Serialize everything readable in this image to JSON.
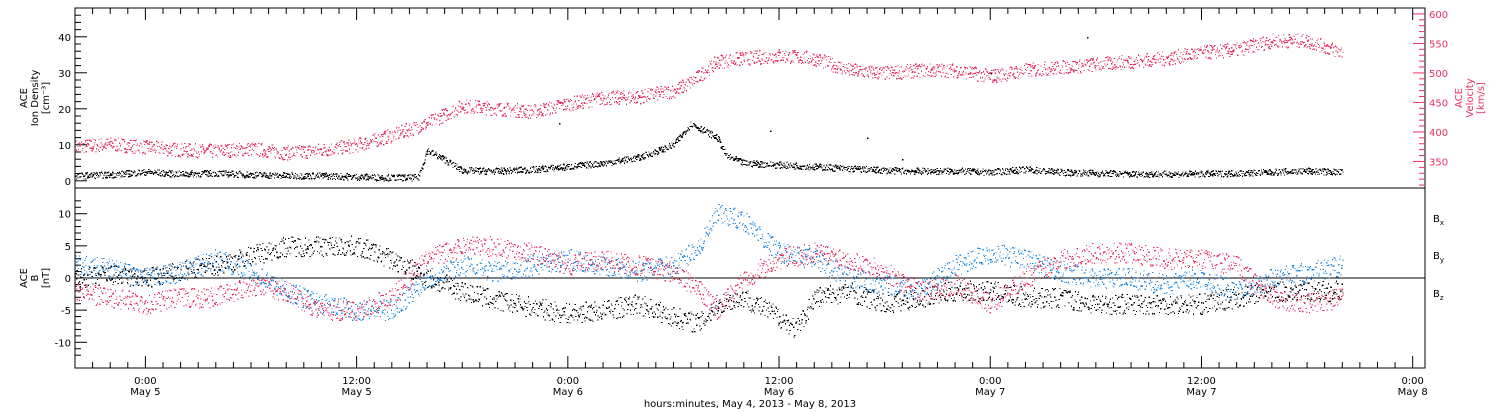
{
  "colors": {
    "black": "#000000",
    "pink": "#e8315f",
    "blue": "#1e88e5"
  },
  "chart_data": [
    {
      "type": "scatter",
      "panel": "top",
      "xlabel": "hours:minutes, May  4, 2013 - May  8, 2013",
      "x_ticks": [
        {
          "hour": 24,
          "time": "0:00",
          "day": "May 5"
        },
        {
          "hour": 36,
          "time": "12:00",
          "day": "May 5"
        },
        {
          "hour": 48,
          "time": "0:00",
          "day": "May 6"
        },
        {
          "hour": 60,
          "time": "12:00",
          "day": "May 6"
        },
        {
          "hour": 72,
          "time": "0:00",
          "day": "May 7"
        },
        {
          "hour": 84,
          "time": "12:00",
          "day": "May 7"
        },
        {
          "hour": 96,
          "time": "0:00",
          "day": "May 8"
        }
      ],
      "xlim": [
        20.0,
        96.7
      ],
      "left_axis": {
        "label_lines": [
          "ACE",
          "Ion Density",
          "[cm⁻³]"
        ],
        "ylim": [
          -2,
          48
        ],
        "ticks": [
          0,
          10,
          20,
          30,
          40
        ]
      },
      "right_axis": {
        "label_lines": [
          "ACE",
          "Velocity",
          "[km/s]"
        ],
        "ylim": [
          305,
          610
        ],
        "ticks": [
          350,
          400,
          450,
          500,
          550,
          600
        ]
      },
      "series": [
        {
          "axis": "left",
          "color": "#000000",
          "points": [
            [
              20,
              1.5
            ],
            [
              22,
              1.8
            ],
            [
              24,
              2.5
            ],
            [
              26,
              2.0
            ],
            [
              28,
              2.2
            ],
            [
              30,
              1.8
            ],
            [
              32,
              1.5
            ],
            [
              34,
              1.5
            ],
            [
              36,
              1.2
            ],
            [
              38,
              1.0
            ],
            [
              39.5,
              1.0
            ],
            [
              40,
              8.5
            ],
            [
              41,
              6.0
            ],
            [
              42,
              3.0
            ],
            [
              44,
              2.8
            ],
            [
              46,
              3.2
            ],
            [
              48,
              4.0
            ],
            [
              50,
              5.0
            ],
            [
              52,
              6.5
            ],
            [
              54,
              10.0
            ],
            [
              55,
              16.0
            ],
            [
              56.5,
              12.0
            ],
            [
              57,
              7.0
            ],
            [
              58,
              5.0
            ],
            [
              60,
              4.5
            ],
            [
              62,
              4.0
            ],
            [
              64,
              3.5
            ],
            [
              66,
              3.0
            ],
            [
              68,
              2.8
            ],
            [
              70,
              2.8
            ],
            [
              72,
              2.5
            ],
            [
              74,
              3.2
            ],
            [
              76,
              2.5
            ],
            [
              78,
              2.2
            ],
            [
              80,
              2.0
            ],
            [
              82,
              2.0
            ],
            [
              84,
              2.0
            ],
            [
              86,
              2.2
            ],
            [
              88,
              2.5
            ],
            [
              90,
              2.8
            ],
            [
              92,
              2.5
            ]
          ]
        },
        {
          "axis": "right",
          "color": "#e8315f",
          "points": [
            [
              20,
              375
            ],
            [
              22,
              380
            ],
            [
              24,
              375
            ],
            [
              26,
              370
            ],
            [
              28,
              368
            ],
            [
              30,
              372
            ],
            [
              32,
              365
            ],
            [
              34,
              370
            ],
            [
              36,
              378
            ],
            [
              38,
              395
            ],
            [
              40,
              415
            ],
            [
              42,
              445
            ],
            [
              44,
              440
            ],
            [
              46,
              435
            ],
            [
              48,
              448
            ],
            [
              50,
              458
            ],
            [
              52,
              460
            ],
            [
              54,
              470
            ],
            [
              55,
              485
            ],
            [
              56.5,
              520
            ],
            [
              58,
              525
            ],
            [
              60,
              530
            ],
            [
              62,
              525
            ],
            [
              64,
              505
            ],
            [
              66,
              500
            ],
            [
              68,
              505
            ],
            [
              70,
              505
            ],
            [
              72,
              495
            ],
            [
              74,
              505
            ],
            [
              76,
              510
            ],
            [
              78,
              515
            ],
            [
              80,
              520
            ],
            [
              82,
              525
            ],
            [
              84,
              535
            ],
            [
              86,
              540
            ],
            [
              88,
              555
            ],
            [
              90,
              555
            ],
            [
              92,
              535
            ]
          ]
        }
      ]
    },
    {
      "type": "scatter",
      "panel": "bottom",
      "left_axis": {
        "label_lines": [
          "ACE",
          "B",
          "[nT]"
        ],
        "ylim": [
          -14,
          14
        ],
        "ticks": [
          -10,
          -5,
          0,
          5,
          10
        ]
      },
      "legend": [
        {
          "label": "B",
          "sub": "x",
          "color": "#000000"
        },
        {
          "label": "B",
          "sub": "y",
          "color": "#1e88e5"
        },
        {
          "label": "B",
          "sub": "z",
          "color": "#e8315f"
        }
      ],
      "series": [
        {
          "name": "Bx",
          "color": "#000000",
          "points": [
            [
              20,
              0
            ],
            [
              22,
              0.5
            ],
            [
              24,
              0
            ],
            [
              26,
              1
            ],
            [
              28,
              2
            ],
            [
              30,
              3.5
            ],
            [
              32,
              5
            ],
            [
              34,
              5
            ],
            [
              36,
              5
            ],
            [
              38,
              3
            ],
            [
              40,
              0
            ],
            [
              42,
              -2
            ],
            [
              44,
              -3.5
            ],
            [
              46,
              -4.5
            ],
            [
              48,
              -5.5
            ],
            [
              50,
              -5
            ],
            [
              52,
              -4
            ],
            [
              54,
              -6
            ],
            [
              55.5,
              -7
            ],
            [
              56.5,
              -4
            ],
            [
              58,
              -3
            ],
            [
              60,
              -6
            ],
            [
              61,
              -8
            ],
            [
              62,
              -3
            ],
            [
              64,
              -2
            ],
            [
              66,
              -4
            ],
            [
              68,
              -3
            ],
            [
              70,
              -2
            ],
            [
              72,
              -2
            ],
            [
              74,
              -3
            ],
            [
              76,
              -3
            ],
            [
              78,
              -4
            ],
            [
              80,
              -4
            ],
            [
              82,
              -4
            ],
            [
              84,
              -4
            ],
            [
              86,
              -3
            ],
            [
              88,
              -2
            ],
            [
              90,
              -2
            ],
            [
              92,
              -2
            ]
          ]
        },
        {
          "name": "By",
          "color": "#1e88e5",
          "points": [
            [
              20,
              2
            ],
            [
              22,
              1.5
            ],
            [
              24,
              0
            ],
            [
              26,
              1
            ],
            [
              28,
              3
            ],
            [
              30,
              1
            ],
            [
              32,
              -2
            ],
            [
              34,
              -4
            ],
            [
              36,
              -5
            ],
            [
              38,
              -5
            ],
            [
              40,
              0
            ],
            [
              42,
              2
            ],
            [
              44,
              1
            ],
            [
              46,
              2
            ],
            [
              48,
              3
            ],
            [
              50,
              2
            ],
            [
              52,
              1
            ],
            [
              54,
              2
            ],
            [
              55.5,
              5
            ],
            [
              56.5,
              10
            ],
            [
              58,
              9
            ],
            [
              60,
              4
            ],
            [
              62,
              3
            ],
            [
              64,
              0
            ],
            [
              66,
              -1
            ],
            [
              68,
              -2
            ],
            [
              70,
              2
            ],
            [
              72,
              4
            ],
            [
              74,
              3
            ],
            [
              76,
              1
            ],
            [
              78,
              0
            ],
            [
              80,
              0
            ],
            [
              82,
              -1
            ],
            [
              84,
              0
            ],
            [
              86,
              -2
            ],
            [
              88,
              0
            ],
            [
              90,
              1
            ],
            [
              92,
              2
            ]
          ]
        },
        {
          "name": "Bz",
          "color": "#e8315f",
          "points": [
            [
              20,
              -2
            ],
            [
              22,
              -3
            ],
            [
              24,
              -4
            ],
            [
              26,
              -3
            ],
            [
              28,
              -3
            ],
            [
              30,
              -1
            ],
            [
              32,
              -2
            ],
            [
              34,
              -5
            ],
            [
              36,
              -5
            ],
            [
              38,
              -3
            ],
            [
              40,
              3
            ],
            [
              42,
              5
            ],
            [
              44,
              5
            ],
            [
              46,
              4
            ],
            [
              48,
              2
            ],
            [
              50,
              3
            ],
            [
              52,
              2
            ],
            [
              54,
              1
            ],
            [
              55.5,
              -2
            ],
            [
              56.5,
              -5
            ],
            [
              58,
              0
            ],
            [
              60,
              3
            ],
            [
              62,
              4
            ],
            [
              64,
              3
            ],
            [
              66,
              1
            ],
            [
              68,
              -2
            ],
            [
              70,
              -1
            ],
            [
              72,
              -4
            ],
            [
              74,
              0
            ],
            [
              76,
              3
            ],
            [
              78,
              4
            ],
            [
              80,
              4
            ],
            [
              82,
              3
            ],
            [
              84,
              3
            ],
            [
              86,
              2
            ],
            [
              88,
              -3
            ],
            [
              90,
              -4
            ],
            [
              92,
              -3
            ]
          ]
        }
      ]
    }
  ]
}
